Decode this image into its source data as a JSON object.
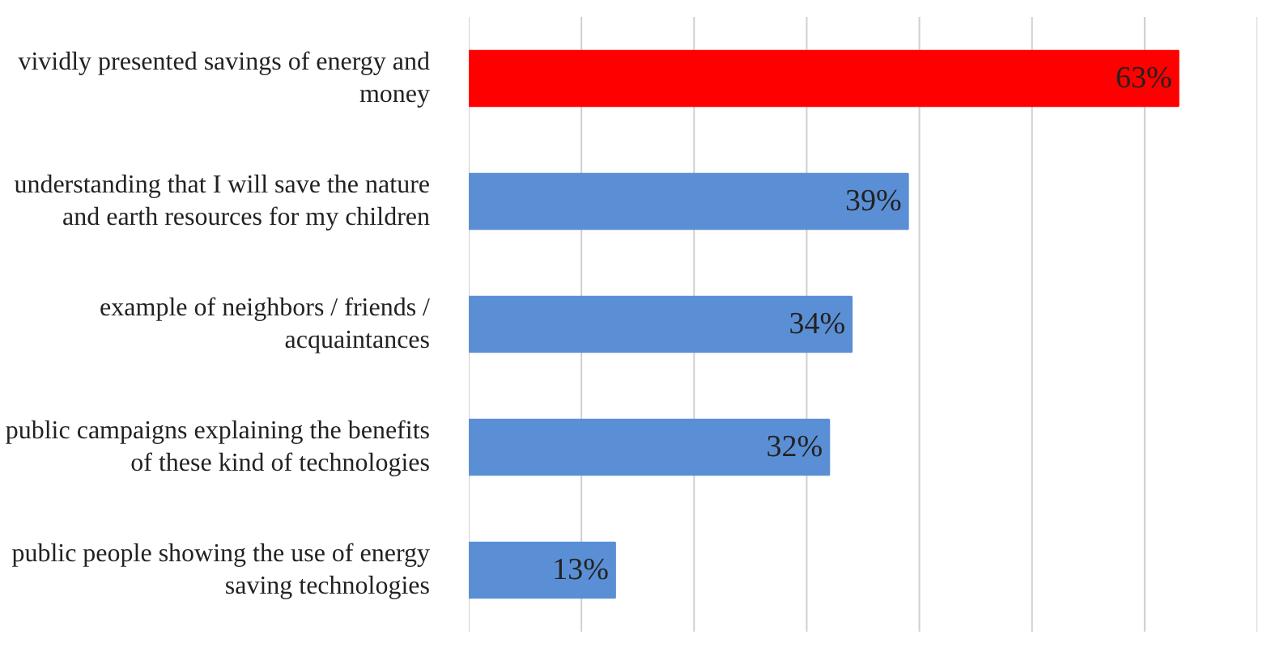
{
  "chart_data": {
    "type": "bar",
    "orientation": "horizontal",
    "categories": [
      "vividly presented savings of energy and money",
      "understanding that I will save the nature and earth resources for my children",
      "example of neighbors / friends / acquaintances",
      "public campaigns explaining the benefits of these kind of technologies",
      "public people showing the use of energy saving technologies"
    ],
    "values": [
      63,
      39,
      34,
      32,
      13
    ],
    "colors": [
      "#ff0000",
      "#5b8fd5",
      "#5b8fd5",
      "#5b8fd5",
      "#5b8fd5"
    ],
    "value_labels": [
      "63%",
      "39%",
      "34%",
      "32%",
      "13%"
    ],
    "xlim": [
      0,
      70
    ],
    "xticks": [
      {
        "value": 0,
        "label": null
      },
      {
        "value": 10,
        "label": null
      },
      {
        "value": 20,
        "label": null
      },
      {
        "value": 30,
        "label": null
      },
      {
        "value": 40,
        "label": null
      },
      {
        "value": 50,
        "label": null
      },
      {
        "value": 60,
        "label": null
      },
      {
        "value": 70,
        "label": null
      }
    ],
    "grid": "x",
    "tick_labels": "y"
  }
}
